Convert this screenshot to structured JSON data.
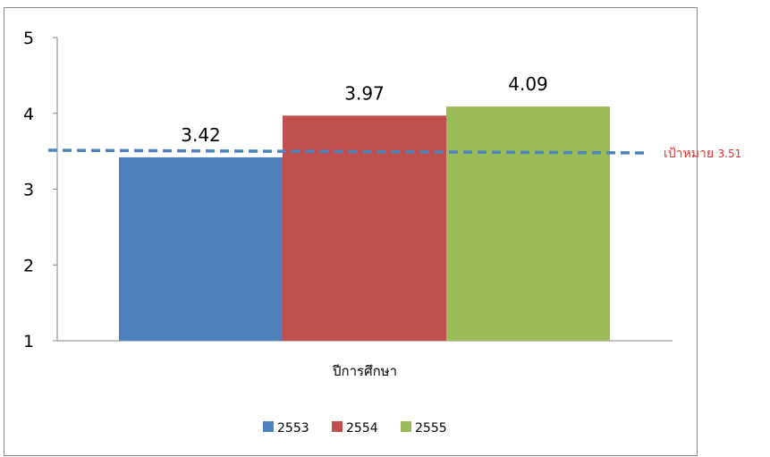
{
  "chart_data": {
    "type": "bar",
    "title": "",
    "xlabel": "ปีการศึกษา",
    "ylabel": "",
    "ylim": [
      1,
      5
    ],
    "yticks": [
      "1",
      "2",
      "3",
      "4",
      "5"
    ],
    "grid": false,
    "legend_position": "bottom",
    "series": [
      {
        "name": "2553",
        "value": 3.42,
        "label": "3.42",
        "color": "#4f81bd"
      },
      {
        "name": "2554",
        "value": 3.97,
        "label": "3.97",
        "color": "#c0504d"
      },
      {
        "name": "2555",
        "value": 4.09,
        "label": "4.09",
        "color": "#9bbb59"
      }
    ],
    "target": {
      "value": 3.51,
      "label": "เป้าหมาย",
      "value_label": "3.51",
      "line_color": "#4f81bd",
      "text_color": "#e03030"
    }
  }
}
